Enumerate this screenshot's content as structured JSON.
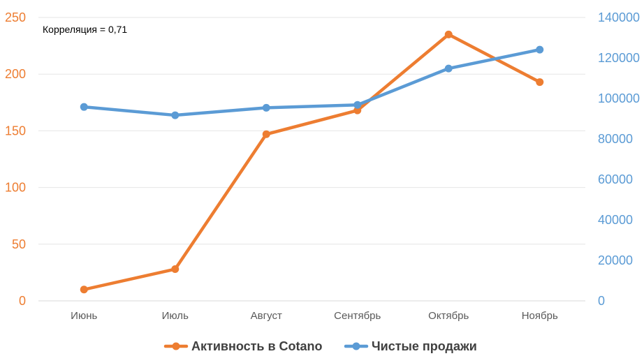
{
  "chart_data": {
    "type": "line",
    "annotation": "Корреляция = 0,71",
    "categories": [
      "Июнь",
      "Июль",
      "Август",
      "Сентябрь",
      "Октябрь",
      "Ноябрь"
    ],
    "y_left": {
      "ticks": [
        "0",
        "50",
        "100",
        "150",
        "200",
        "250"
      ],
      "ylim": [
        0,
        250
      ]
    },
    "y_right": {
      "ticks": [
        "0",
        "20000",
        "40000",
        "60000",
        "80000",
        "100000",
        "120000",
        "140000"
      ],
      "ylim": [
        0,
        140000
      ]
    },
    "grid": true,
    "legend_position": "bottom",
    "series": [
      {
        "name": "Активность в Cotano",
        "axis": "left",
        "color": "#ED7D31",
        "values": [
          10,
          28,
          147,
          168,
          235,
          193
        ]
      },
      {
        "name": "Чистые продажи",
        "axis": "right",
        "color": "#5B9BD5",
        "values": [
          95800,
          91700,
          95400,
          96800,
          114800,
          124100
        ]
      }
    ]
  }
}
